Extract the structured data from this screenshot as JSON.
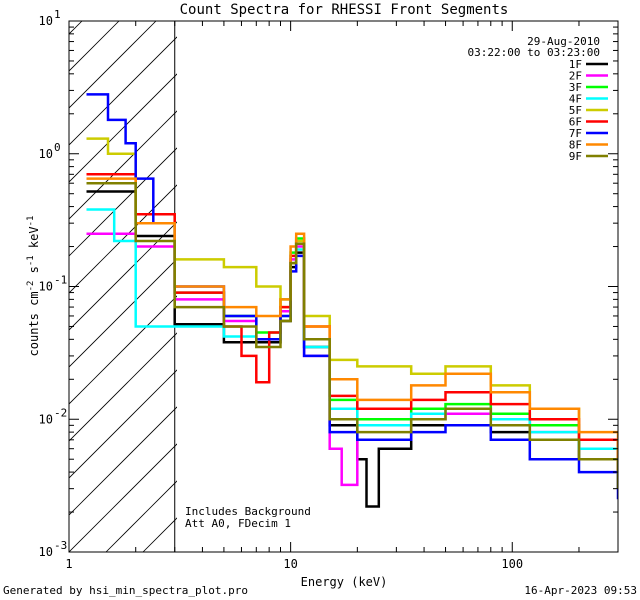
{
  "chart_data": {
    "type": "line",
    "title": "Count Spectra for RHESSI Front Segments",
    "xlabel": "Energy (keV)",
    "ylabel_parts": [
      "counts cm",
      "-2",
      " s",
      "-1",
      " keV",
      "-1"
    ],
    "x_scale": "log",
    "y_scale": "log",
    "xlim": [
      1,
      300
    ],
    "ylim": [
      0.001,
      10
    ],
    "x_ticks": [
      {
        "value": 1,
        "label": "1"
      },
      {
        "value": 10,
        "label": "10"
      },
      {
        "value": 100,
        "label": "100"
      }
    ],
    "y_ticks": [
      {
        "value": 0.001,
        "base": "10",
        "exp": "-3"
      },
      {
        "value": 0.01,
        "base": "10",
        "exp": "-2"
      },
      {
        "value": 0.1,
        "base": "10",
        "exp": "-1"
      },
      {
        "value": 1,
        "base": "10",
        "exp": "0"
      },
      {
        "value": 10,
        "base": "10",
        "exp": "1"
      }
    ],
    "hatched_region": [
      1,
      3
    ],
    "date": "29-Aug-2010",
    "time_range": "03:22:00 to 03:23:00",
    "annotations": [
      "Includes Background",
      "Att A0, FDecim 1"
    ],
    "footer_left": "Generated by hsi_min_spectra_plot.pro",
    "footer_right": "16-Apr-2023 09:53",
    "series": [
      {
        "name": "1F",
        "color": "#000000",
        "points": [
          [
            1.2,
            0.52
          ],
          [
            2,
            0.24
          ],
          [
            3,
            0.052
          ],
          [
            5,
            0.038
          ],
          [
            7,
            0.038
          ],
          [
            9,
            0.055
          ],
          [
            10,
            0.14
          ],
          [
            10.6,
            0.18
          ],
          [
            11.5,
            0.035
          ],
          [
            15,
            0.009
          ],
          [
            20,
            0.005
          ],
          [
            22,
            0.0022
          ],
          [
            25,
            0.006
          ],
          [
            35,
            0.009
          ],
          [
            50,
            0.009
          ],
          [
            80,
            0.008
          ],
          [
            120,
            0.007
          ],
          [
            200,
            0.005
          ],
          [
            300,
            0.003
          ]
        ]
      },
      {
        "name": "2F",
        "color": "#ff00ff",
        "points": [
          [
            1.2,
            0.25
          ],
          [
            2,
            0.2
          ],
          [
            3,
            0.08
          ],
          [
            5,
            0.055
          ],
          [
            7,
            0.04
          ],
          [
            9,
            0.065
          ],
          [
            10,
            0.16
          ],
          [
            10.6,
            0.2
          ],
          [
            11.5,
            0.03
          ],
          [
            15,
            0.006
          ],
          [
            17,
            0.0032
          ],
          [
            20,
            0.007
          ],
          [
            35,
            0.01
          ],
          [
            50,
            0.011
          ],
          [
            80,
            0.01
          ],
          [
            120,
            0.008
          ],
          [
            200,
            0.006
          ],
          [
            300,
            0.004
          ]
        ]
      },
      {
        "name": "3F",
        "color": "#00ff00",
        "points": [
          [
            1.2,
            0.6
          ],
          [
            2,
            0.3
          ],
          [
            3,
            0.09
          ],
          [
            5,
            0.06
          ],
          [
            7,
            0.045
          ],
          [
            9,
            0.08
          ],
          [
            10,
            0.18
          ],
          [
            10.6,
            0.23
          ],
          [
            11.5,
            0.04
          ],
          [
            15,
            0.014
          ],
          [
            20,
            0.01
          ],
          [
            35,
            0.012
          ],
          [
            50,
            0.013
          ],
          [
            80,
            0.011
          ],
          [
            120,
            0.009
          ],
          [
            200,
            0.006
          ],
          [
            300,
            0.004
          ]
        ]
      },
      {
        "name": "4F",
        "color": "#00ffff",
        "points": [
          [
            1.2,
            0.38
          ],
          [
            1.6,
            0.22
          ],
          [
            2,
            0.05
          ],
          [
            3,
            0.05
          ],
          [
            5,
            0.042
          ],
          [
            7,
            0.04
          ],
          [
            9,
            0.06
          ],
          [
            10,
            0.15
          ],
          [
            10.6,
            0.19
          ],
          [
            11.5,
            0.035
          ],
          [
            15,
            0.012
          ],
          [
            20,
            0.009
          ],
          [
            35,
            0.011
          ],
          [
            50,
            0.012
          ],
          [
            80,
            0.01
          ],
          [
            120,
            0.008
          ],
          [
            200,
            0.006
          ],
          [
            300,
            0.004
          ]
        ]
      },
      {
        "name": "5F",
        "color": "#cccc00",
        "points": [
          [
            1.2,
            1.3
          ],
          [
            1.5,
            1.0
          ],
          [
            2,
            0.35
          ],
          [
            3,
            0.16
          ],
          [
            5,
            0.14
          ],
          [
            7,
            0.1
          ],
          [
            9,
            0.07
          ],
          [
            10,
            0.15
          ],
          [
            10.6,
            0.22
          ],
          [
            11.5,
            0.06
          ],
          [
            15,
            0.028
          ],
          [
            20,
            0.025
          ],
          [
            35,
            0.022
          ],
          [
            50,
            0.025
          ],
          [
            80,
            0.018
          ],
          [
            120,
            0.012
          ],
          [
            200,
            0.007
          ],
          [
            300,
            0.004
          ]
        ]
      },
      {
        "name": "6F",
        "color": "#ff0000",
        "points": [
          [
            1.2,
            0.7
          ],
          [
            2,
            0.35
          ],
          [
            3,
            0.09
          ],
          [
            5,
            0.05
          ],
          [
            6,
            0.03
          ],
          [
            7,
            0.019
          ],
          [
            8,
            0.045
          ],
          [
            9,
            0.07
          ],
          [
            10,
            0.17
          ],
          [
            10.6,
            0.21
          ],
          [
            11.5,
            0.05
          ],
          [
            15,
            0.015
          ],
          [
            20,
            0.012
          ],
          [
            35,
            0.014
          ],
          [
            50,
            0.016
          ],
          [
            80,
            0.013
          ],
          [
            120,
            0.01
          ],
          [
            200,
            0.007
          ],
          [
            300,
            0.004
          ]
        ]
      },
      {
        "name": "7F",
        "color": "#0000ff",
        "points": [
          [
            1.2,
            2.8
          ],
          [
            1.5,
            1.8
          ],
          [
            1.8,
            1.2
          ],
          [
            2,
            0.65
          ],
          [
            2.4,
            0.3
          ],
          [
            3,
            0.1
          ],
          [
            5,
            0.06
          ],
          [
            7,
            0.04
          ],
          [
            9,
            0.06
          ],
          [
            10,
            0.13
          ],
          [
            10.6,
            0.17
          ],
          [
            11.5,
            0.03
          ],
          [
            15,
            0.008
          ],
          [
            20,
            0.007
          ],
          [
            35,
            0.008
          ],
          [
            50,
            0.009
          ],
          [
            80,
            0.007
          ],
          [
            120,
            0.005
          ],
          [
            200,
            0.004
          ],
          [
            300,
            0.0025
          ]
        ]
      },
      {
        "name": "8F",
        "color": "#ff8800",
        "points": [
          [
            1.2,
            0.65
          ],
          [
            2,
            0.3
          ],
          [
            3,
            0.1
          ],
          [
            5,
            0.07
          ],
          [
            7,
            0.06
          ],
          [
            9,
            0.08
          ],
          [
            10,
            0.2
          ],
          [
            10.6,
            0.25
          ],
          [
            11.5,
            0.05
          ],
          [
            15,
            0.02
          ],
          [
            20,
            0.014
          ],
          [
            35,
            0.018
          ],
          [
            50,
            0.022
          ],
          [
            80,
            0.016
          ],
          [
            120,
            0.012
          ],
          [
            200,
            0.008
          ],
          [
            300,
            0.005
          ]
        ]
      },
      {
        "name": "9F",
        "color": "#808000",
        "points": [
          [
            1.2,
            0.6
          ],
          [
            2,
            0.22
          ],
          [
            3,
            0.07
          ],
          [
            5,
            0.05
          ],
          [
            7,
            0.035
          ],
          [
            9,
            0.055
          ],
          [
            10,
            0.15
          ],
          [
            10.6,
            0.21
          ],
          [
            11.5,
            0.04
          ],
          [
            15,
            0.01
          ],
          [
            20,
            0.008
          ],
          [
            35,
            0.01
          ],
          [
            50,
            0.012
          ],
          [
            80,
            0.009
          ],
          [
            120,
            0.007
          ],
          [
            200,
            0.005
          ],
          [
            300,
            0.003
          ]
        ]
      }
    ]
  }
}
